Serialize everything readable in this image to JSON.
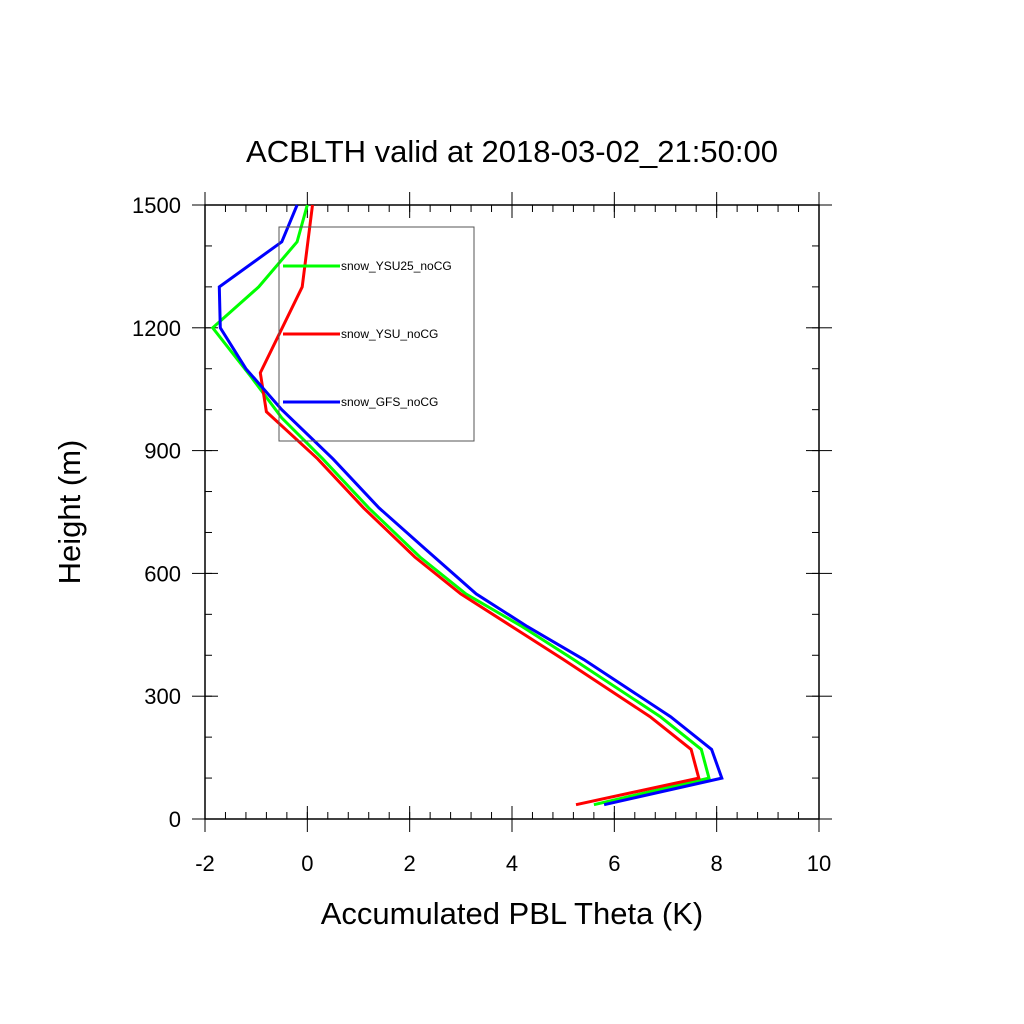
{
  "chart_data": {
    "type": "line",
    "title": "ACBLTH valid at 2018-03-02_21:50:00",
    "xlabel": "Accumulated PBL Theta (K)",
    "ylabel": "Height (m)",
    "xlim": [
      -2,
      10
    ],
    "ylim": [
      0,
      1500
    ],
    "xticks": [
      "-2",
      "0",
      "2",
      "4",
      "6",
      "8",
      "10"
    ],
    "yticks": [
      "0",
      "300",
      "600",
      "900",
      "1200",
      "1500"
    ],
    "legend_position": "top-left inside plot",
    "series": [
      {
        "name": "snow_YSU25_noCG",
        "color": "#00ff00",
        "points": [
          [
            5.6,
            35
          ],
          [
            7.85,
            100
          ],
          [
            7.7,
            170
          ],
          [
            6.9,
            250
          ],
          [
            5.2,
            390
          ],
          [
            4.2,
            470
          ],
          [
            3.1,
            550
          ],
          [
            2.2,
            640
          ],
          [
            1.2,
            760
          ],
          [
            0.3,
            880
          ],
          [
            -0.5,
            980
          ],
          [
            -1.1,
            1080
          ],
          [
            -1.85,
            1200
          ],
          [
            -0.95,
            1300
          ],
          [
            -0.2,
            1410
          ],
          [
            0,
            1500
          ]
        ]
      },
      {
        "name": "snow_YSU_noCG",
        "color": "#ff0000",
        "points": [
          [
            5.25,
            35
          ],
          [
            7.65,
            100
          ],
          [
            7.5,
            170
          ],
          [
            6.7,
            250
          ],
          [
            5.0,
            390
          ],
          [
            4.0,
            470
          ],
          [
            3.0,
            550
          ],
          [
            2.1,
            640
          ],
          [
            1.1,
            760
          ],
          [
            0.2,
            880
          ],
          [
            -0.8,
            995
          ],
          [
            -0.92,
            1090
          ],
          [
            -0.1,
            1300
          ],
          [
            0.1,
            1500
          ]
        ]
      },
      {
        "name": "snow_GFS_noCG",
        "color": "#0000ff",
        "points": [
          [
            5.8,
            35
          ],
          [
            8.1,
            100
          ],
          [
            7.9,
            170
          ],
          [
            7.1,
            250
          ],
          [
            5.4,
            390
          ],
          [
            4.3,
            470
          ],
          [
            3.3,
            550
          ],
          [
            2.3,
            660
          ],
          [
            1.4,
            760
          ],
          [
            0.5,
            880
          ],
          [
            -0.5,
            1000
          ],
          [
            -1.2,
            1100
          ],
          [
            -1.7,
            1200
          ],
          [
            -1.72,
            1300
          ],
          [
            -0.5,
            1410
          ],
          [
            -0.2,
            1500
          ]
        ]
      }
    ]
  }
}
